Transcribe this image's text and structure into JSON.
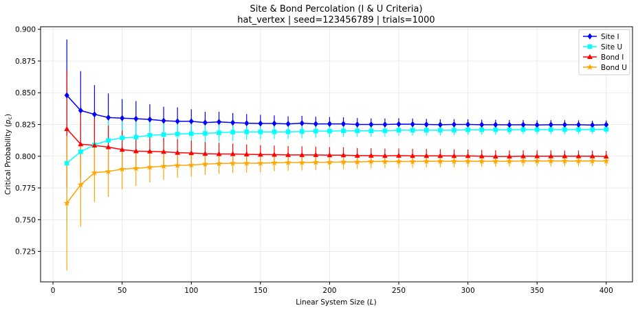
{
  "chart_data": {
    "type": "line",
    "title": "Site & Bond Percolation (I & U Criteria)",
    "subtitle": "hat_vertex  |  seed=123456789  |  trials=1000",
    "xlabel": "Linear System Size (",
    "xlabel_var": "L",
    "xlabel_end": ")",
    "ylabel": "Critical Probability (",
    "ylabel_var": "p",
    "ylabel_sub": "c",
    "ylabel_end": ")",
    "xlim": [
      -9,
      419
    ],
    "ylim": [
      0.701,
      0.902
    ],
    "xticks": [
      0,
      50,
      100,
      150,
      200,
      250,
      300,
      350,
      400
    ],
    "yticks": [
      0.725,
      0.75,
      0.775,
      0.8,
      0.825,
      0.85,
      0.875,
      0.9
    ],
    "ytick_labels": [
      "0.725",
      "0.750",
      "0.775",
      "0.800",
      "0.825",
      "0.850",
      "0.875",
      "0.900"
    ],
    "grid": true,
    "legend": "top-right",
    "x": [
      10,
      20,
      30,
      40,
      50,
      60,
      70,
      80,
      90,
      100,
      110,
      120,
      130,
      140,
      150,
      160,
      170,
      180,
      190,
      200,
      210,
      220,
      230,
      240,
      250,
      260,
      270,
      280,
      290,
      300,
      310,
      320,
      330,
      340,
      350,
      360,
      370,
      380,
      390,
      400
    ],
    "series": [
      {
        "name": "Site I",
        "color": "#0000ff",
        "marker": "diamond",
        "values": [
          0.848,
          0.836,
          0.833,
          0.8305,
          0.83,
          0.8295,
          0.829,
          0.828,
          0.8275,
          0.8275,
          0.8265,
          0.827,
          0.8265,
          0.826,
          0.8258,
          0.8258,
          0.8255,
          0.826,
          0.8255,
          0.8255,
          0.8255,
          0.825,
          0.825,
          0.825,
          0.8253,
          0.8252,
          0.825,
          0.8248,
          0.825,
          0.825,
          0.8248,
          0.8248,
          0.8247,
          0.8248,
          0.8246,
          0.8248,
          0.8248,
          0.8248,
          0.8245,
          0.8248
        ],
        "errors": [
          0.044,
          0.031,
          0.023,
          0.019,
          0.015,
          0.014,
          0.012,
          0.011,
          0.011,
          0.0095,
          0.0085,
          0.008,
          0.0075,
          0.0072,
          0.0068,
          0.0064,
          0.006,
          0.0058,
          0.0056,
          0.0054,
          0.0052,
          0.005,
          0.0048,
          0.0047,
          0.0046,
          0.0045,
          0.0044,
          0.0043,
          0.0042,
          0.0041,
          0.004,
          0.0039,
          0.0038,
          0.0038,
          0.0037,
          0.0036,
          0.0036,
          0.0035,
          0.0035,
          0.0034
        ]
      },
      {
        "name": "Site U",
        "color": "#00ffff",
        "marker": "square",
        "values": [
          0.7945,
          0.8035,
          0.809,
          0.8125,
          0.8145,
          0.815,
          0.8165,
          0.817,
          0.8175,
          0.8178,
          0.818,
          0.8185,
          0.819,
          0.8192,
          0.8192,
          0.8192,
          0.8192,
          0.8195,
          0.8198,
          0.8198,
          0.82,
          0.82,
          0.82,
          0.82,
          0.8205,
          0.8205,
          0.8205,
          0.8205,
          0.8205,
          0.8208,
          0.8208,
          0.8208,
          0.8208,
          0.821,
          0.821,
          0.821,
          0.821,
          0.821,
          0.821,
          0.8212
        ],
        "errors": [
          0.052,
          0.03,
          0.02,
          0.016,
          0.013,
          0.012,
          0.011,
          0.0095,
          0.0088,
          0.0082,
          0.0075,
          0.007,
          0.0068,
          0.0064,
          0.006,
          0.0058,
          0.0056,
          0.0054,
          0.0052,
          0.005,
          0.0048,
          0.0047,
          0.0046,
          0.0045,
          0.0044,
          0.0043,
          0.0042,
          0.0041,
          0.004,
          0.0039,
          0.0038,
          0.0038,
          0.0037,
          0.0036,
          0.0036,
          0.0035,
          0.0035,
          0.0034,
          0.0034,
          0.0033
        ]
      },
      {
        "name": "Bond I",
        "color": "#ff0000",
        "marker": "triangle",
        "values": [
          0.8215,
          0.8095,
          0.8085,
          0.8072,
          0.8052,
          0.804,
          0.8038,
          0.8035,
          0.8028,
          0.8025,
          0.802,
          0.8018,
          0.8018,
          0.8015,
          0.8013,
          0.8012,
          0.801,
          0.801,
          0.801,
          0.8008,
          0.8008,
          0.8005,
          0.8005,
          0.8003,
          0.8005,
          0.8003,
          0.8003,
          0.8003,
          0.8002,
          0.8002,
          0.8,
          0.7998,
          0.7998,
          0.8,
          0.8,
          0.8,
          0.8,
          0.8,
          0.8,
          0.7998
        ],
        "errors": [
          0.046,
          0.027,
          0.021,
          0.017,
          0.015,
          0.013,
          0.012,
          0.011,
          0.0105,
          0.0098,
          0.0092,
          0.0088,
          0.0082,
          0.0078,
          0.0074,
          0.0072,
          0.007,
          0.0068,
          0.0066,
          0.0064,
          0.0062,
          0.006,
          0.0058,
          0.0057,
          0.0056,
          0.0055,
          0.0054,
          0.0053,
          0.0052,
          0.0051,
          0.005,
          0.0049,
          0.0048,
          0.0047,
          0.0047,
          0.0046,
          0.0045,
          0.0045,
          0.0044,
          0.0044
        ]
      },
      {
        "name": "Bond U",
        "color": "#ffa500",
        "marker": "star",
        "values": [
          0.763,
          0.7775,
          0.787,
          0.788,
          0.7898,
          0.7905,
          0.7913,
          0.7922,
          0.7928,
          0.793,
          0.7938,
          0.7942,
          0.7945,
          0.7945,
          0.7945,
          0.7948,
          0.795,
          0.795,
          0.7952,
          0.7952,
          0.7955,
          0.7955,
          0.7958,
          0.7958,
          0.7958,
          0.7958,
          0.796,
          0.796,
          0.796,
          0.796,
          0.796,
          0.796,
          0.796,
          0.7962,
          0.7962,
          0.7962,
          0.7962,
          0.7962,
          0.7962,
          0.7962
        ],
        "errors": [
          0.053,
          0.033,
          0.023,
          0.02,
          0.016,
          0.014,
          0.012,
          0.011,
          0.0098,
          0.0092,
          0.0085,
          0.0082,
          0.0078,
          0.0074,
          0.007,
          0.0066,
          0.0064,
          0.0062,
          0.006,
          0.0058,
          0.0056,
          0.0054,
          0.0052,
          0.0051,
          0.005,
          0.0049,
          0.0048,
          0.0047,
          0.0046,
          0.0045,
          0.0044,
          0.0043,
          0.0043,
          0.0042,
          0.0041,
          0.0041,
          0.004,
          0.004,
          0.0039,
          0.0039
        ]
      }
    ]
  }
}
